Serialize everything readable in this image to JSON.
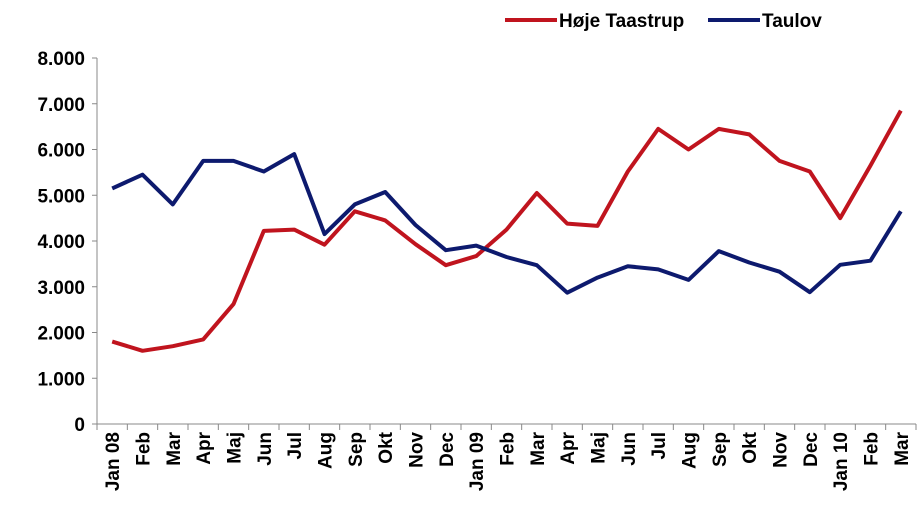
{
  "chart_data": {
    "type": "line",
    "categories": [
      "Jan 08",
      "Feb",
      "Mar",
      "Apr",
      "Maj",
      "Jun",
      "Jul",
      "Aug",
      "Sep",
      "Okt",
      "Nov",
      "Dec",
      "Jan 09",
      "Feb",
      "Mar",
      "Apr",
      "Maj",
      "Jun",
      "Jul",
      "Aug",
      "Sep",
      "Okt",
      "Nov",
      "Dec",
      "Jan 10",
      "Feb",
      "Mar"
    ],
    "series": [
      {
        "name": "Høje Taastrup",
        "color": "#c0141e",
        "values": [
          1800,
          1600,
          1700,
          1850,
          2620,
          4220,
          4250,
          3920,
          4650,
          4450,
          3930,
          3470,
          3670,
          4250,
          5050,
          4380,
          4330,
          5520,
          6450,
          6000,
          6450,
          6330,
          5750,
          5520,
          4500,
          5650,
          6850
        ]
      },
      {
        "name": "Taulov",
        "color": "#0d1a6e",
        "values": [
          5150,
          5450,
          4800,
          5750,
          5750,
          5520,
          5900,
          4150,
          4800,
          5070,
          4350,
          3800,
          3900,
          3650,
          3470,
          2870,
          3200,
          3450,
          3380,
          3150,
          3780,
          3530,
          3330,
          2880,
          3480,
          3570,
          4650
        ]
      }
    ],
    "ylim": [
      0,
      8000
    ],
    "yticks": [
      0,
      {
        "value": 1000,
        "label": "1.000"
      },
      {
        "value": 2000,
        "label": "2.000"
      },
      {
        "value": 3000,
        "label": "3.000"
      },
      {
        "value": 4000,
        "label": "4.000"
      },
      {
        "value": 5000,
        "label": "5.000"
      },
      {
        "value": 6000,
        "label": "6.000"
      },
      {
        "value": 7000,
        "label": "7.000"
      },
      {
        "value": 8000,
        "label": "8.000"
      }
    ],
    "legend": "top-right"
  }
}
